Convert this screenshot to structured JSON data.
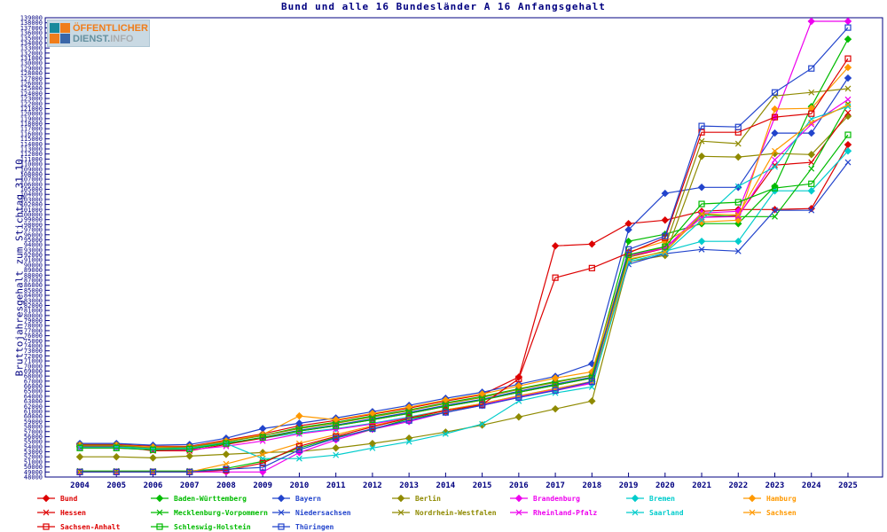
{
  "title": "Bund und alle 16 Bundesländer A 16 Anfangsgehalt",
  "logo": {
    "line1": "ÖFFENTLICHER",
    "line2a": "DIENST.",
    "line2b": "INFO"
  },
  "y_axis": {
    "label": "Bruttojahresgehalt zum Stichtag 31.10.",
    "min": 48000,
    "max": 139000,
    "step": 1000
  },
  "x_axis": {
    "years": [
      2004,
      2005,
      2006,
      2007,
      2008,
      2009,
      2010,
      2011,
      2012,
      2013,
      2014,
      2015,
      2016,
      2017,
      2018,
      2019,
      2020,
      2021,
      2022,
      2023,
      2024,
      2025
    ]
  },
  "colors": {
    "axis": "#000080",
    "background": "#ffffff"
  },
  "chart_data": {
    "type": "line",
    "title": "Bund und alle 16 Bundesländer A 16 Anfangsgehalt",
    "xlabel": "",
    "ylabel": "Bruttojahresgehalt zum Stichtag 31.10.",
    "ylim": [
      48000,
      139000
    ],
    "ytick_step": 1000,
    "grid": false,
    "legend_position": "bottom",
    "x": [
      2004,
      2005,
      2006,
      2007,
      2008,
      2009,
      2010,
      2011,
      2012,
      2013,
      2014,
      2015,
      2016,
      2017,
      2018,
      2019,
      2020,
      2021,
      2022,
      2023,
      2024,
      2025
    ],
    "series": [
      {
        "name": "Bund",
        "color": "#dd0000",
        "marker": "diamond",
        "values": [
          54450,
          54450,
          54100,
          54100,
          55300,
          56550,
          58150,
          59200,
          60450,
          61650,
          63050,
          64300,
          67800,
          93800,
          94150,
          98200,
          98900,
          100650,
          101000,
          101000,
          101200,
          113850
        ]
      },
      {
        "name": "Baden-Württemberg",
        "color": "#00bb00",
        "marker": "diamond",
        "values": [
          54100,
          54100,
          53750,
          53750,
          55000,
          56200,
          57800,
          58850,
          60100,
          61300,
          62700,
          63950,
          65500,
          66900,
          68150,
          94700,
          96100,
          98200,
          98200,
          105600,
          121400,
          134750
        ]
      },
      {
        "name": "Bayern",
        "color": "#2244cc",
        "marker": "diamond",
        "values": [
          54650,
          54650,
          54300,
          54450,
          55700,
          57600,
          58650,
          59700,
          60950,
          62200,
          63600,
          64800,
          66400,
          67950,
          70450,
          97000,
          104200,
          105400,
          105400,
          116150,
          116150,
          127050
        ]
      },
      {
        "name": "Berlin",
        "color": "#8f8a00",
        "marker": "diamond",
        "values": [
          52000,
          52000,
          51800,
          52150,
          52500,
          52850,
          53050,
          53750,
          54650,
          55700,
          56900,
          58300,
          59900,
          61500,
          63050,
          90650,
          91900,
          111550,
          111400,
          112100,
          111900,
          119500
        ]
      },
      {
        "name": "Brandenburg",
        "color": "#ee00ee",
        "marker": "diamond",
        "values": [
          49000,
          49000,
          49000,
          49000,
          49000,
          49000,
          52850,
          55350,
          57450,
          59000,
          60800,
          62200,
          63750,
          65150,
          66550,
          91900,
          93300,
          100300,
          100650,
          119300,
          138300,
          138300
        ]
      },
      {
        "name": "Bremen",
        "color": "#00cccc",
        "marker": "diamond",
        "values": [
          53950,
          53950,
          53550,
          53750,
          54800,
          55700,
          56750,
          57600,
          58650,
          59900,
          61300,
          62550,
          64100,
          65500,
          66900,
          91000,
          92750,
          94700,
          94700,
          104700,
          104700,
          112600
        ]
      },
      {
        "name": "Hamburg",
        "color": "#ff9900",
        "marker": "diamond",
        "values": [
          54300,
          54300,
          53950,
          53950,
          55150,
          56400,
          60100,
          59350,
          60600,
          61850,
          63250,
          64450,
          66050,
          67600,
          68850,
          92600,
          94700,
          98550,
          98900,
          120900,
          121050,
          129150
        ]
      },
      {
        "name": "Hessen",
        "color": "#dd0000",
        "marker": "x",
        "values": [
          54100,
          54100,
          53200,
          53200,
          54450,
          55700,
          57100,
          58150,
          59350,
          60600,
          62000,
          63250,
          64800,
          66200,
          67600,
          91550,
          93300,
          99450,
          99800,
          109800,
          110350,
          120200
        ]
      },
      {
        "name": "Mecklenburg-Vorpommern",
        "color": "#00bb00",
        "marker": "x",
        "values": [
          49200,
          49200,
          49200,
          49200,
          49700,
          51100,
          53750,
          55850,
          57450,
          59550,
          60800,
          62350,
          63950,
          65350,
          66750,
          91000,
          92750,
          99950,
          99600,
          99600,
          109100,
          121950
        ]
      },
      {
        "name": "Niedersachsen",
        "color": "#2244cc",
        "marker": "x",
        "values": [
          53950,
          53950,
          53400,
          53550,
          54650,
          55850,
          57250,
          58300,
          59550,
          60800,
          62200,
          63400,
          65000,
          66400,
          67800,
          90150,
          92250,
          93100,
          92750,
          100850,
          100850,
          110350
        ]
      },
      {
        "name": "Nordrhein-Westfalen",
        "color": "#8f8a00",
        "marker": "x",
        "values": [
          54300,
          54300,
          53750,
          53950,
          55000,
          56200,
          57600,
          58650,
          59900,
          61150,
          62550,
          63750,
          65350,
          66750,
          68150,
          91550,
          93650,
          114550,
          114050,
          123500,
          124200,
          124950
        ]
      },
      {
        "name": "Rheinland-Pfalz",
        "color": "#ee00ee",
        "marker": "x",
        "values": [
          53750,
          53750,
          53400,
          53400,
          54100,
          55150,
          56550,
          57450,
          58500,
          59700,
          61150,
          62350,
          63950,
          65350,
          66750,
          91900,
          93300,
          99450,
          99600,
          110850,
          117900,
          122800
        ]
      },
      {
        "name": "Saarland",
        "color": "#00cccc",
        "marker": "x",
        "values": [
          53950,
          53950,
          53550,
          53550,
          54650,
          51650,
          51650,
          52350,
          53750,
          55000,
          56550,
          58500,
          63050,
          64650,
          65850,
          90650,
          92400,
          98900,
          105600,
          109450,
          118950,
          121400
        ]
      },
      {
        "name": "Sachsen",
        "color": "#ff9900",
        "marker": "x",
        "values": [
          49000,
          49000,
          49000,
          49000,
          50600,
          52500,
          54650,
          56400,
          58150,
          59700,
          61300,
          62550,
          64100,
          65500,
          66900,
          91200,
          92600,
          100150,
          99950,
          112600,
          118250,
          121750
        ]
      },
      {
        "name": "Sachsen-Anhalt",
        "color": "#dd0000",
        "marker": "square",
        "values": [
          49000,
          49000,
          49000,
          49000,
          49350,
          50750,
          54100,
          56050,
          57950,
          59700,
          61150,
          62350,
          67450,
          87500,
          89400,
          92400,
          95400,
          116300,
          116300,
          119300,
          120000,
          130900
        ]
      },
      {
        "name": "Schleswig-Holstein",
        "color": "#00bb00",
        "marker": "square",
        "values": [
          53750,
          53750,
          53400,
          53550,
          54650,
          55850,
          57100,
          58150,
          59350,
          60600,
          62000,
          63250,
          64800,
          66200,
          67600,
          92050,
          93650,
          102100,
          102450,
          105250,
          106100,
          115800
        ]
      },
      {
        "name": "Thüringen",
        "color": "#2244cc",
        "marker": "square",
        "values": [
          49000,
          49000,
          49000,
          49000,
          49550,
          49900,
          53400,
          55700,
          57600,
          59200,
          60800,
          62200,
          63750,
          65150,
          66900,
          93100,
          95750,
          117550,
          117350,
          124200,
          128950,
          137050
        ]
      }
    ]
  }
}
